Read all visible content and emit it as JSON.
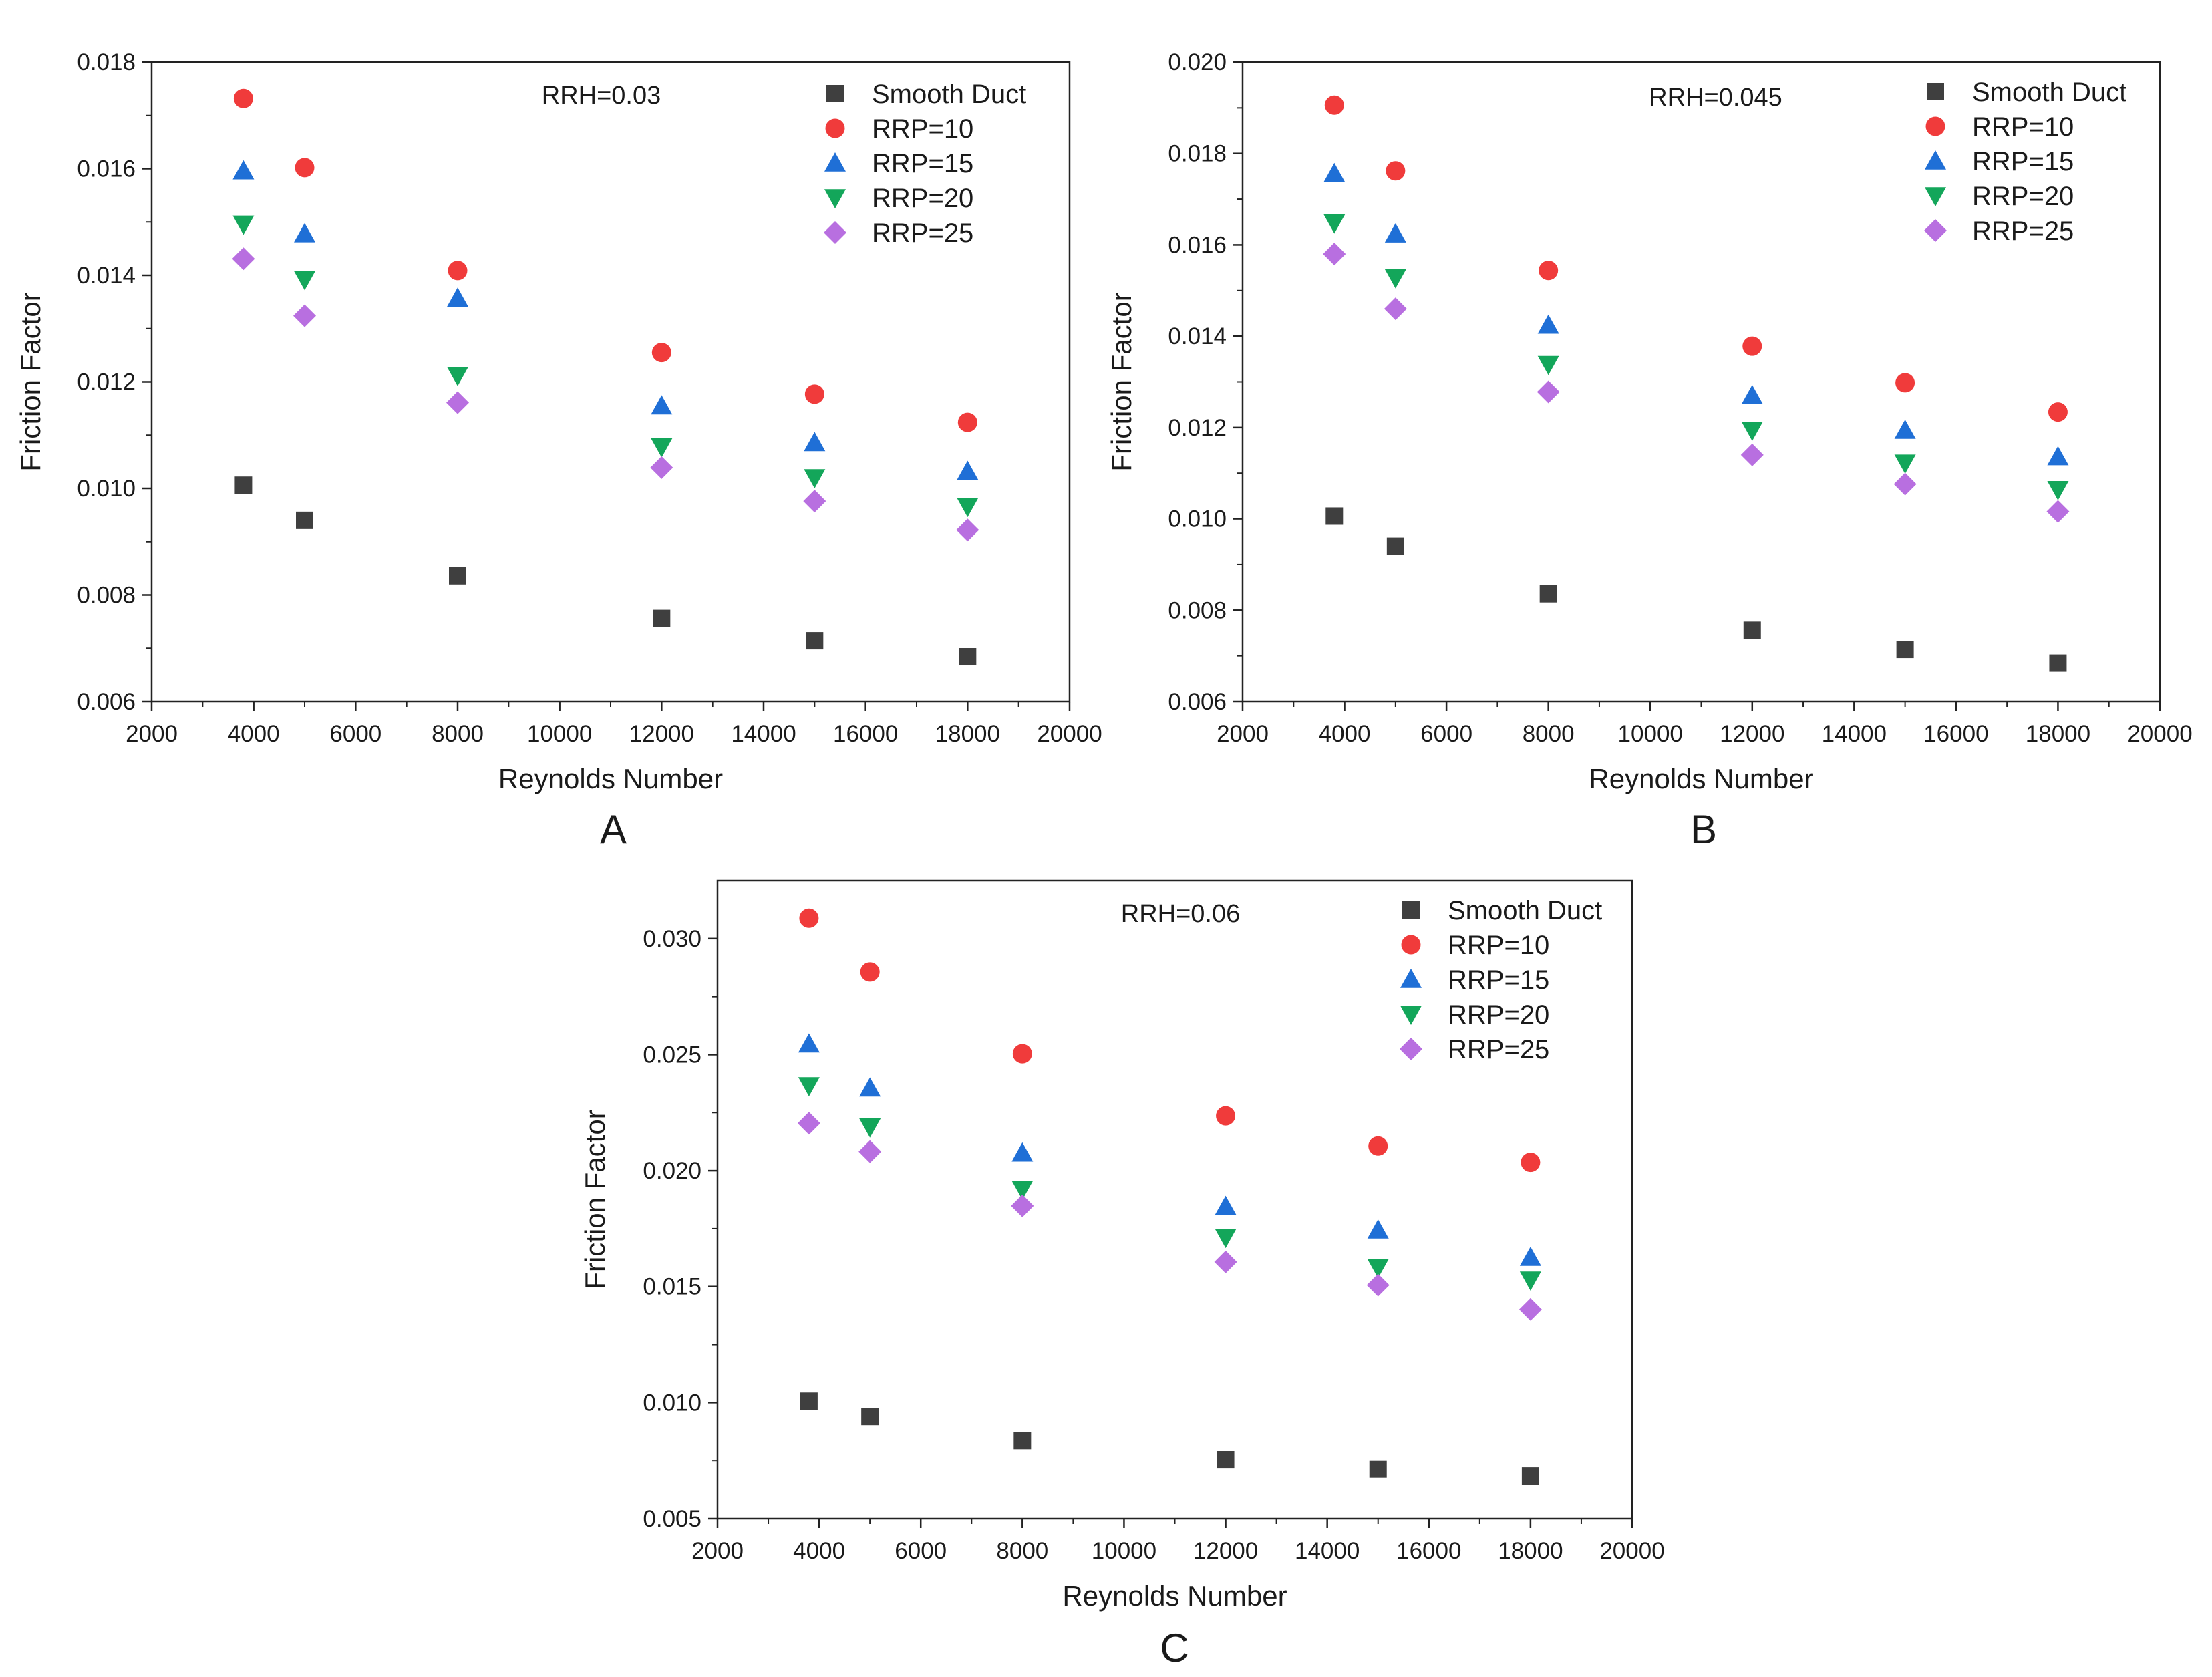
{
  "figure": {
    "panels": [
      {
        "id": "A",
        "label": "A",
        "note": "RRH=0.03"
      },
      {
        "id": "B",
        "label": "B",
        "note": "RRH=0.045"
      },
      {
        "id": "C",
        "label": "C",
        "note": "RRH=0.06"
      }
    ]
  },
  "series_styles": [
    {
      "name": "Smooth Duct",
      "color": "#3f3f3f",
      "marker": "square"
    },
    {
      "name": "RRP=10",
      "color": "#f03b3b",
      "marker": "circle"
    },
    {
      "name": "RRP=15",
      "color": "#1f6fd6",
      "marker": "triangle-up"
    },
    {
      "name": "RRP=20",
      "color": "#13a65a",
      "marker": "triangle-down"
    },
    {
      "name": "RRP=25",
      "color": "#b86fe0",
      "marker": "diamond"
    }
  ],
  "chart_data": [
    {
      "type": "scatter",
      "panel": "A",
      "annotation": "RRH=0.03",
      "xlabel": "Reynolds Number",
      "ylabel": "Friction Factor",
      "xlim": [
        2000,
        20000
      ],
      "ylim": [
        0.006,
        0.018
      ],
      "xticks": [
        "2000",
        "4000",
        "6000",
        "8000",
        "10000",
        "12000",
        "14000",
        "16000",
        "18000",
        "20000"
      ],
      "yticks": [
        "0.006",
        "0.008",
        "0.010",
        "0.012",
        "0.014",
        "0.016",
        "0.018"
      ],
      "legend": "top-right",
      "grid": false,
      "x": [
        3800,
        5000,
        8000,
        12000,
        15000,
        18000
      ],
      "series": [
        {
          "name": "Smooth Duct",
          "values": [
            0.01006,
            0.0094,
            0.00836,
            0.00756,
            0.00714,
            0.00684
          ]
        },
        {
          "name": "RRP=10",
          "values": [
            0.01732,
            0.01602,
            0.01409,
            0.01255,
            0.01177,
            0.01124
          ]
        },
        {
          "name": "RRP=15",
          "values": [
            0.01596,
            0.01478,
            0.01357,
            0.01155,
            0.01086,
            0.01032
          ]
        },
        {
          "name": "RRP=20",
          "values": [
            0.01496,
            0.01392,
            0.01212,
            0.01078,
            0.0102,
            0.00966
          ]
        },
        {
          "name": "RRP=25",
          "values": [
            0.01431,
            0.01324,
            0.01161,
            0.01039,
            0.00976,
            0.00922
          ]
        }
      ]
    },
    {
      "type": "scatter",
      "panel": "B",
      "annotation": "RRH=0.045",
      "xlabel": "Reynolds Number",
      "ylabel": "Friction Factor",
      "xlim": [
        2000,
        20000
      ],
      "ylim": [
        0.006,
        0.02
      ],
      "xticks": [
        "2000",
        "4000",
        "6000",
        "8000",
        "10000",
        "12000",
        "14000",
        "16000",
        "18000",
        "20000"
      ],
      "yticks": [
        "0.006",
        "0.008",
        "0.010",
        "0.012",
        "0.014",
        "0.016",
        "0.018",
        "0.020"
      ],
      "legend": "top-right",
      "grid": false,
      "x": [
        3800,
        5000,
        8000,
        12000,
        15000,
        18000
      ],
      "series": [
        {
          "name": "Smooth Duct",
          "values": [
            0.01006,
            0.0094,
            0.00836,
            0.00756,
            0.00714,
            0.00684
          ]
        },
        {
          "name": "RRP=10",
          "values": [
            0.01906,
            0.01762,
            0.01544,
            0.01378,
            0.01298,
            0.01234
          ]
        },
        {
          "name": "RRP=15",
          "values": [
            0.01756,
            0.01624,
            0.01424,
            0.0127,
            0.01194,
            0.01136
          ]
        },
        {
          "name": "RRP=20",
          "values": [
            0.01648,
            0.01528,
            0.01338,
            0.01194,
            0.01122,
            0.01064
          ]
        },
        {
          "name": "RRP=25",
          "values": [
            0.0158,
            0.0146,
            0.01278,
            0.0114,
            0.01076,
            0.01016
          ]
        }
      ]
    },
    {
      "type": "scatter",
      "panel": "C",
      "annotation": "RRH=0.06",
      "xlabel": "Reynolds Number",
      "ylabel": "Friction Factor",
      "xlim": [
        2000,
        20000
      ],
      "ylim": [
        0.005,
        0.0325
      ],
      "xticks": [
        "2000",
        "4000",
        "6000",
        "8000",
        "10000",
        "12000",
        "14000",
        "16000",
        "18000",
        "20000"
      ],
      "yticks": [
        "0.005",
        "0.010",
        "0.015",
        "0.020",
        "0.025",
        "0.030"
      ],
      "legend": "top-right",
      "grid": false,
      "x": [
        3800,
        5000,
        8000,
        12000,
        15000,
        18000
      ],
      "series": [
        {
          "name": "Smooth Duct",
          "values": [
            0.01006,
            0.0094,
            0.00836,
            0.00756,
            0.00714,
            0.00684
          ]
        },
        {
          "name": "RRP=10",
          "values": [
            0.03088,
            0.02856,
            0.02504,
            0.02236,
            0.02106,
            0.02036
          ]
        },
        {
          "name": "RRP=15",
          "values": [
            0.02546,
            0.02356,
            0.02076,
            0.01846,
            0.01744,
            0.01626
          ]
        },
        {
          "name": "RRP=20",
          "values": [
            0.02366,
            0.02188,
            0.0192,
            0.01712,
            0.01582,
            0.01528
          ]
        },
        {
          "name": "RRP=25",
          "values": [
            0.02204,
            0.02082,
            0.01848,
            0.01606,
            0.01506,
            0.01402
          ]
        }
      ]
    }
  ]
}
